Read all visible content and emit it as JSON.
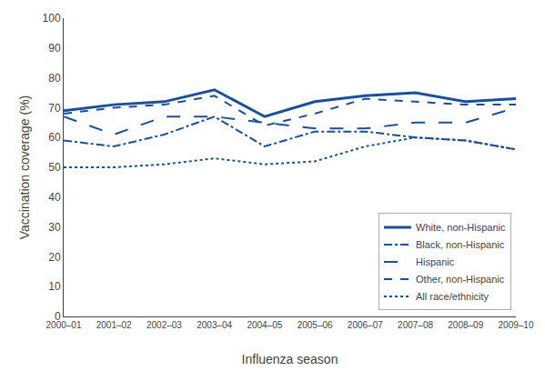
{
  "chart_data": {
    "type": "line",
    "categories": [
      "2000–01",
      "2001–02",
      "2002–03",
      "2003–04",
      "2004–05",
      "2005–06",
      "2006–07",
      "2007–08",
      "2008–09",
      "2009–10"
    ],
    "series": [
      {
        "name": "White, non-Hispanic",
        "values": [
          69,
          71,
          72,
          76,
          67,
          72,
          74,
          75,
          72,
          73
        ],
        "line_style": "solid"
      },
      {
        "name": "Black, non-Hispanic",
        "values": [
          59,
          57,
          61,
          67,
          57,
          62,
          62,
          60,
          59,
          56
        ],
        "line_style": "dashdot"
      },
      {
        "name": "Hispanic",
        "values": [
          67,
          61,
          67,
          67,
          65,
          63,
          63,
          65,
          65,
          70
        ],
        "line_style": "longdash"
      },
      {
        "name": "Other, non-Hispanic",
        "values": [
          68,
          70,
          71,
          74,
          64,
          68,
          73,
          72,
          71,
          71
        ],
        "line_style": "dash"
      },
      {
        "name": "All race/ethnicity",
        "values": [
          50,
          50,
          51,
          53,
          51,
          52,
          57,
          60,
          59,
          56
        ],
        "line_style": "dot"
      }
    ],
    "color": "#1a4f9c",
    "xlabel": "Influenza season",
    "ylabel": "Vaccination coverage (%)",
    "ylim": [
      0,
      100
    ],
    "yticks": [
      0,
      10,
      20,
      30,
      40,
      50,
      60,
      70,
      80,
      90,
      100
    ],
    "grid": false,
    "legend": "lower right"
  }
}
